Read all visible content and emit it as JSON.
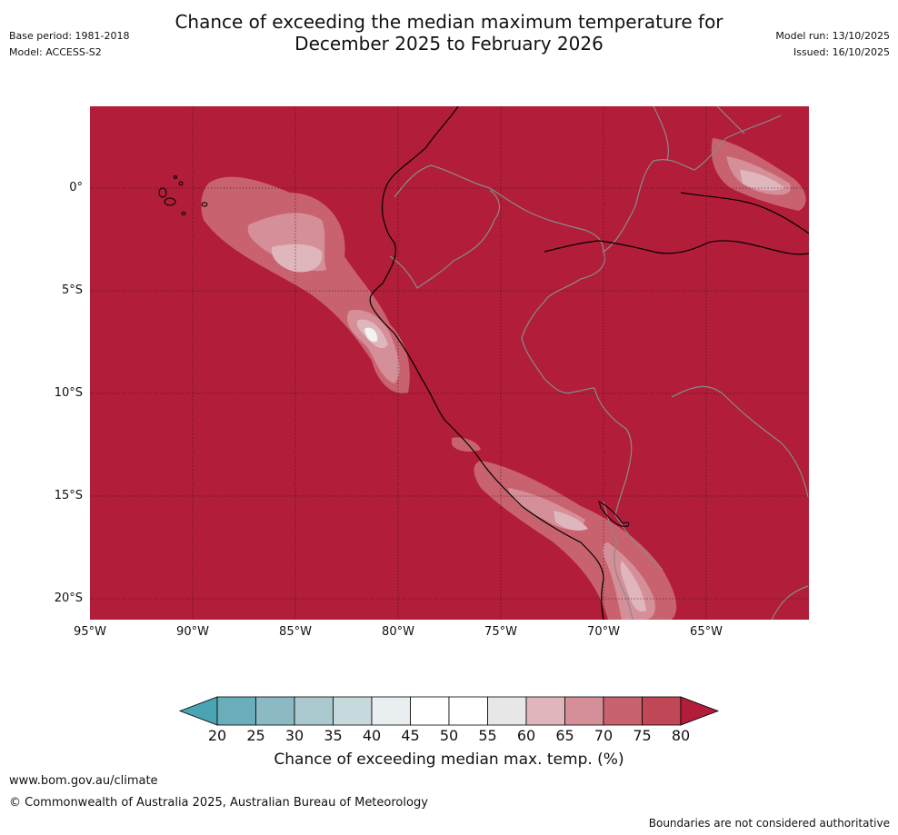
{
  "header": {
    "title_line1": "Chance of exceeding the median maximum temperature for",
    "title_line2": "December 2025 to February 2026",
    "base_period": "Base period: 1981-2018",
    "model": "Model: ACCESS-S2",
    "model_run": "Model run: 13/10/2025",
    "issued": "Issued: 16/10/2025"
  },
  "map": {
    "background_color": "#b21d39",
    "lat_labels": [
      "0°",
      "5°S",
      "10°S",
      "15°S",
      "20°S"
    ],
    "lon_labels": [
      "95°W",
      "90°W",
      "85°W",
      "80°W",
      "75°W",
      "70°W",
      "65°W"
    ],
    "gridlines": true
  },
  "colorbar": {
    "ticks": [
      "20",
      "25",
      "30",
      "35",
      "40",
      "45",
      "50",
      "55",
      "60",
      "65",
      "70",
      "75",
      "80"
    ],
    "colors": [
      "#6aaebb",
      "#8cbac4",
      "#aac9cf",
      "#c8d9dd",
      "#e9eef0",
      "#ffffff",
      "#ffffff",
      "#e7e7e7",
      "#e0b6bd",
      "#d58f99",
      "#c8626f",
      "#bf4756"
    ],
    "low_extend_color": "#49a5b3",
    "high_extend_color": "#b21d39",
    "title": "Chance of exceeding median max. temp. (%)"
  },
  "footer": {
    "url": "www.bom.gov.au/climate",
    "copyright": "© Commonwealth of Australia 2025, Australian Bureau of Meteorology",
    "disclaimer": "Boundaries are not considered authoritative"
  }
}
